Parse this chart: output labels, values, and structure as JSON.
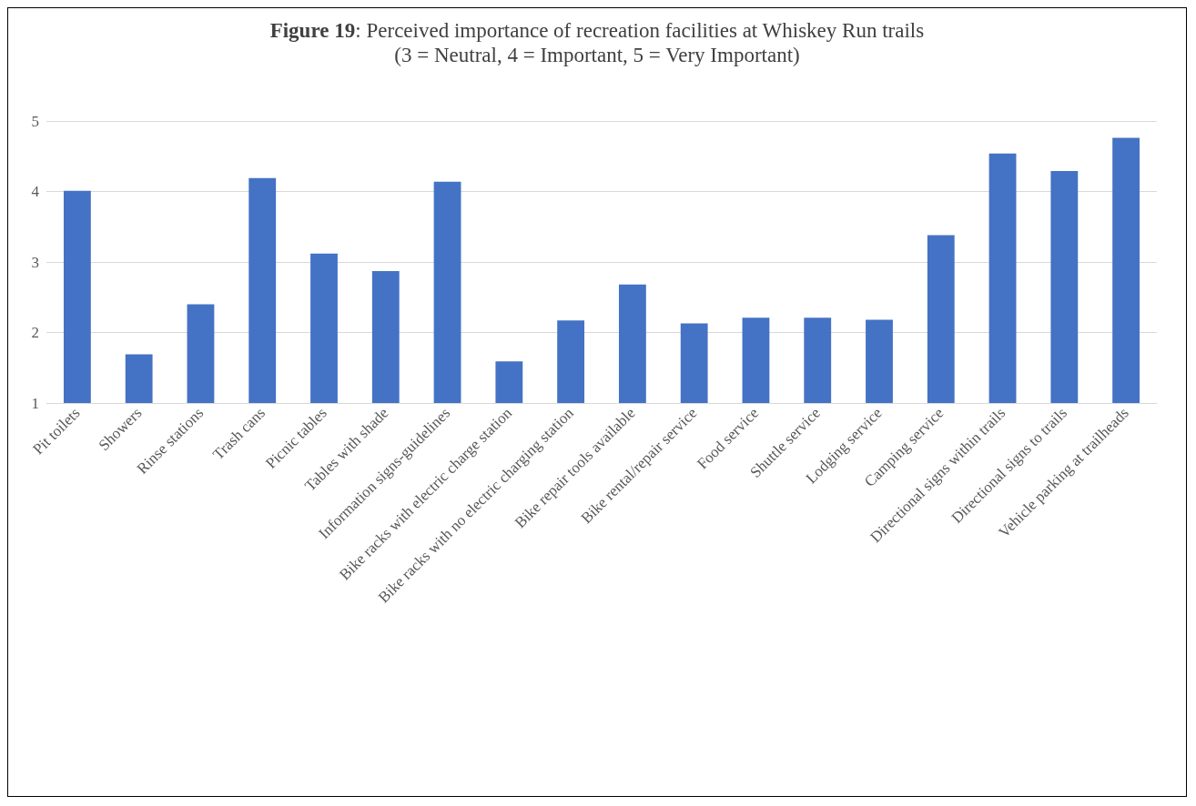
{
  "chart_data": {
    "type": "bar",
    "title": "Figure 19: Perceived importance of recreation facilities at Whiskey Run trails\n(3 = Neutral, 4 = Important, 5 = Very Important)",
    "categories": [
      "Pit toilets",
      "Showers",
      "Rinse stations",
      "Trash cans",
      "Picnic tables",
      "Tables with shade",
      "Information signs-guidelines",
      "Bike racks with electric charge station",
      "Bike racks with no electric charging station",
      "Bike repair tools available",
      "Bike rental/repair service",
      "Food service",
      "Shuttle service",
      "Lodging service",
      "Camping service",
      "Directional signs within trails",
      "Directional signs to trails",
      "Vehicle parking at trailheads"
    ],
    "values": [
      4.01,
      1.69,
      2.4,
      4.19,
      3.12,
      2.87,
      4.14,
      1.59,
      2.17,
      2.68,
      2.13,
      2.21,
      2.21,
      2.18,
      3.38,
      4.54,
      4.29,
      4.76
    ],
    "color": "#4472c4",
    "ylim": [
      1,
      5
    ],
    "yticks": [
      1,
      2,
      3,
      4,
      5
    ],
    "grid": "y"
  }
}
